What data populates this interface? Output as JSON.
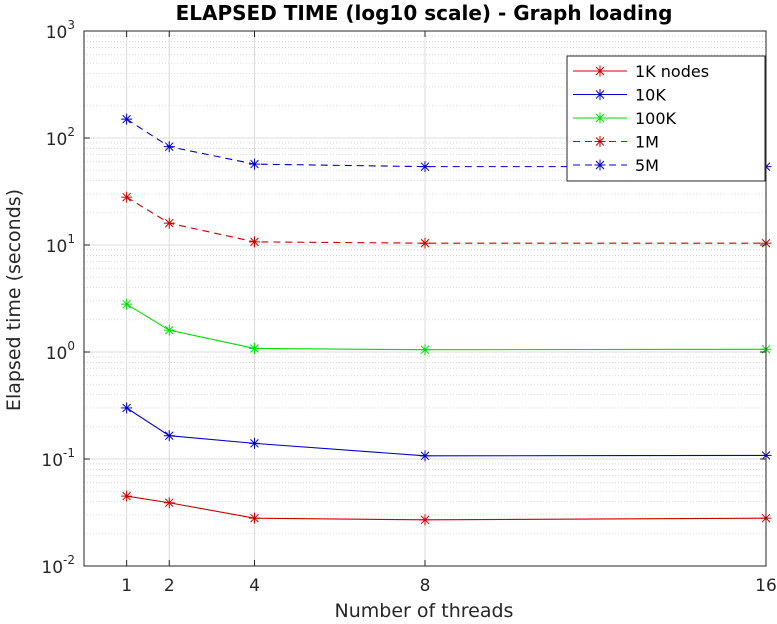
{
  "chart_data": {
    "type": "line",
    "title": "ELAPSED TIME (log10 scale) - Graph loading",
    "xlabel": "Number of threads",
    "ylabel": "Elapsed time (seconds)",
    "x": [
      1,
      2,
      4,
      8,
      16
    ],
    "xlim": [
      0,
      16
    ],
    "ylim": [
      0.01,
      1000
    ],
    "yscale": "log10",
    "xticks": [
      "1",
      "2",
      "4",
      "8",
      "16"
    ],
    "yticks": [
      {
        "base": "10",
        "exp": "-2"
      },
      {
        "base": "10",
        "exp": "-1"
      },
      {
        "base": "10",
        "exp": "0"
      },
      {
        "base": "10",
        "exp": "1"
      },
      {
        "base": "10",
        "exp": "2"
      },
      {
        "base": "10",
        "exp": "3"
      }
    ],
    "grid": true,
    "minor_grid": true,
    "legend": "top-right",
    "series": [
      {
        "name": "1K nodes",
        "values": [
          0.045,
          0.039,
          0.028,
          0.027,
          0.028
        ],
        "color": "#cc0000",
        "style": "solid",
        "marker": "asterisk"
      },
      {
        "name": "10K",
        "values": [
          0.3,
          0.165,
          0.14,
          0.107,
          0.108
        ],
        "color": "#0000cc",
        "style": "solid",
        "marker": "asterisk"
      },
      {
        "name": "100K",
        "values": [
          2.8,
          1.6,
          1.08,
          1.05,
          1.06
        ],
        "color": "#00dd00",
        "style": "solid",
        "marker": "asterisk"
      },
      {
        "name": "1M",
        "values": [
          28,
          16,
          10.7,
          10.4,
          10.4
        ],
        "color": "#cc0000",
        "style": "dashed",
        "marker": "asterisk"
      },
      {
        "name": "5M",
        "values": [
          150,
          83,
          57,
          54,
          54
        ],
        "color": "#0000cc",
        "style": "dashed",
        "marker": "asterisk"
      }
    ]
  }
}
